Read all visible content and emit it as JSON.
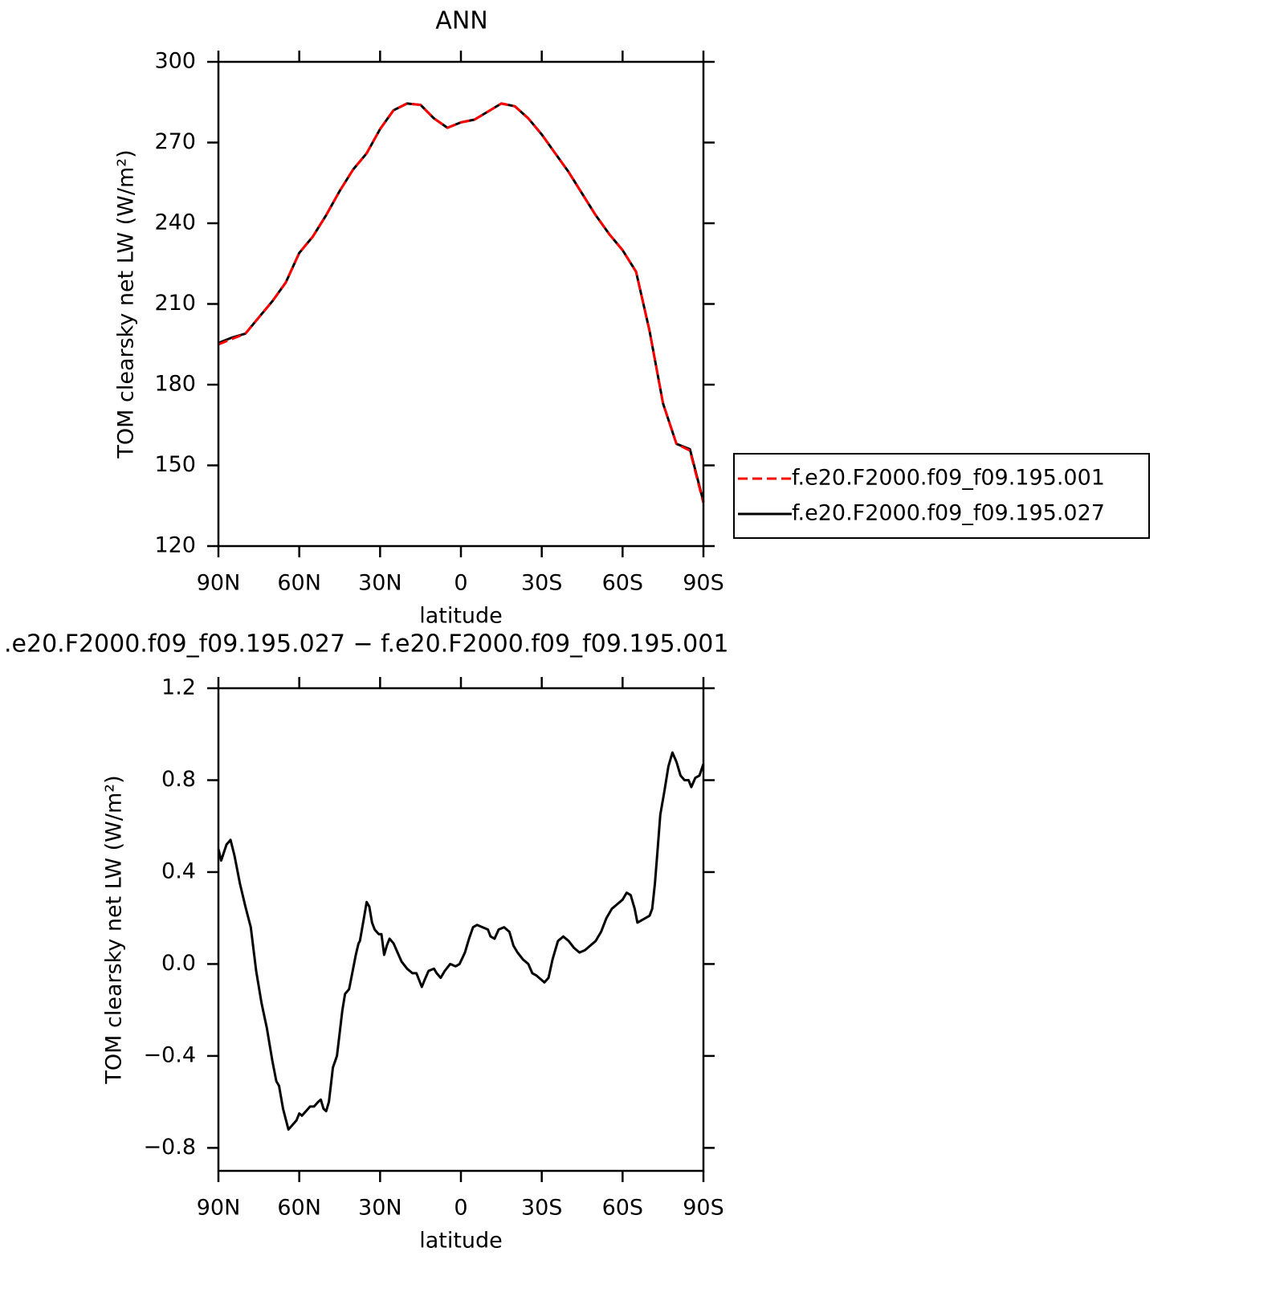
{
  "chart_data": [
    {
      "type": "line",
      "title": "ANN",
      "xlabel": "latitude",
      "ylabel": "TOM clearsky net LW (W/m²)",
      "x": [
        90,
        85,
        80,
        75,
        70,
        65,
        60,
        55,
        50,
        45,
        40,
        35,
        30,
        25,
        20,
        15,
        10,
        5,
        0,
        -5,
        -10,
        -15,
        -20,
        -25,
        -30,
        -35,
        -40,
        -45,
        -50,
        -55,
        -60,
        -65,
        -70,
        -75,
        -80,
        -85,
        -90
      ],
      "series": [
        {
          "name": "f.e20.F2000.f09_f09.195.001",
          "color": "#ff0000",
          "dash": true,
          "values": [
            195,
            197,
            199,
            205,
            211,
            218,
            229,
            235,
            243,
            252,
            260,
            266,
            275,
            282,
            284.5,
            284,
            279,
            275.5,
            277.5,
            278.5,
            281.5,
            284.5,
            283.5,
            279,
            273,
            266,
            259,
            251,
            243,
            236,
            230,
            222,
            200,
            173,
            158,
            155.5,
            136
          ]
        },
        {
          "name": "f.e20.F2000.f09_f09.195.027",
          "color": "#000000",
          "dash": false,
          "values": [
            195.5,
            197.5,
            199,
            205,
            211,
            218,
            229,
            235,
            243,
            252,
            260,
            266,
            275,
            282,
            284.5,
            284,
            279,
            275.5,
            277.5,
            278.5,
            281.5,
            284.5,
            283.5,
            279,
            273,
            266,
            259,
            251,
            243,
            236,
            230,
            222,
            200,
            173,
            158,
            156,
            136.5
          ]
        }
      ],
      "xlim": [
        90,
        -90
      ],
      "xticks": [
        {
          "value": 90,
          "label": "90N"
        },
        {
          "value": 60,
          "label": "60N"
        },
        {
          "value": 30,
          "label": "30N"
        },
        0,
        {
          "value": -30,
          "label": "30S"
        },
        {
          "value": -60,
          "label": "60S"
        },
        {
          "value": -90,
          "label": "90S"
        }
      ],
      "ylim": [
        120,
        300
      ],
      "yticks": [
        120,
        150,
        180,
        210,
        240,
        270,
        300
      ],
      "legend": "right"
    },
    {
      "type": "line",
      "title": ".e20.F2000.f09_f09.195.027 − f.e20.F2000.f09_f09.195.001",
      "xlabel": "latitude",
      "ylabel": "TOM clearsky net LW (W/m²)",
      "x": [
        90,
        89,
        87,
        85.5,
        84,
        82,
        80,
        78,
        76,
        74,
        72,
        70,
        68.5,
        67.5,
        66,
        64,
        62.5,
        61,
        60,
        59,
        57.5,
        56,
        54.5,
        53,
        52,
        51,
        50,
        49,
        47.5,
        46,
        44,
        43,
        41.5,
        40.5,
        39,
        38,
        37.5,
        36,
        35,
        34,
        33,
        32,
        30.5,
        29.5,
        28.5,
        27.5,
        26.5,
        25,
        23.5,
        22,
        20,
        18,
        16.5,
        15.5,
        14.5,
        13.5,
        12,
        10,
        9,
        7.5,
        6,
        4,
        2,
        0.5,
        -1.5,
        -3,
        -4.5,
        -6,
        -8,
        -10,
        -11,
        -12.5,
        -14,
        -16,
        -18,
        -19.5,
        -21,
        -23,
        -25,
        -26.5,
        -28,
        -30,
        -31,
        -32.5,
        -34,
        -36,
        -38,
        -40,
        -42,
        -44,
        -46,
        -48,
        -50,
        -52,
        -54,
        -56,
        -58,
        -60,
        -61.5,
        -63,
        -64.5,
        -65.5,
        -67,
        -68.5,
        -70,
        -71,
        -72,
        -73,
        -74,
        -75.5,
        -77,
        -78.5,
        -80,
        -81.5,
        -83,
        -84.5,
        -85.5,
        -87,
        -88.5,
        -90
      ],
      "values": [
        0.5,
        0.45,
        0.52,
        0.54,
        0.47,
        0.35,
        0.25,
        0.16,
        -0.03,
        -0.17,
        -0.28,
        -0.42,
        -0.51,
        -0.53,
        -0.63,
        -0.72,
        -0.7,
        -0.68,
        -0.65,
        -0.66,
        -0.64,
        -0.62,
        -0.62,
        -0.6,
        -0.59,
        -0.63,
        -0.64,
        -0.6,
        -0.45,
        -0.4,
        -0.2,
        -0.13,
        -0.11,
        -0.05,
        0.04,
        0.09,
        0.1,
        0.2,
        0.27,
        0.25,
        0.18,
        0.15,
        0.13,
        0.13,
        0.04,
        0.08,
        0.11,
        0.09,
        0.05,
        0.01,
        -0.02,
        -0.04,
        -0.04,
        -0.07,
        -0.1,
        -0.07,
        -0.03,
        -0.02,
        -0.04,
        -0.06,
        -0.03,
        0,
        -0.01,
        0,
        0.05,
        0.11,
        0.16,
        0.17,
        0.16,
        0.15,
        0.12,
        0.11,
        0.15,
        0.16,
        0.14,
        0.08,
        0.05,
        0.02,
        0,
        -0.04,
        -0.05,
        -0.07,
        -0.08,
        -0.06,
        0.02,
        0.1,
        0.12,
        0.1,
        0.07,
        0.05,
        0.06,
        0.08,
        0.1,
        0.14,
        0.2,
        0.24,
        0.26,
        0.28,
        0.31,
        0.3,
        0.24,
        0.18,
        0.19,
        0.2,
        0.21,
        0.24,
        0.35,
        0.5,
        0.65,
        0.75,
        0.86,
        0.92,
        0.88,
        0.82,
        0.8,
        0.8,
        0.77,
        0.81,
        0.82,
        0.87
      ],
      "color": "#000000",
      "xlim": [
        90,
        -90
      ],
      "xticks": [
        {
          "value": 90,
          "label": "90N"
        },
        {
          "value": 60,
          "label": "60N"
        },
        {
          "value": 30,
          "label": "30N"
        },
        0,
        {
          "value": -30,
          "label": "30S"
        },
        {
          "value": -60,
          "label": "60S"
        },
        {
          "value": -90,
          "label": "90S"
        }
      ],
      "ylim": [
        -0.9,
        1.2
      ],
      "yticks": [
        {
          "value": -0.8,
          "label": "−0.8"
        },
        {
          "value": -0.4,
          "label": "−0.4"
        },
        {
          "value": 0,
          "label": "0.0"
        },
        0.4,
        0.8,
        1.2
      ]
    }
  ]
}
